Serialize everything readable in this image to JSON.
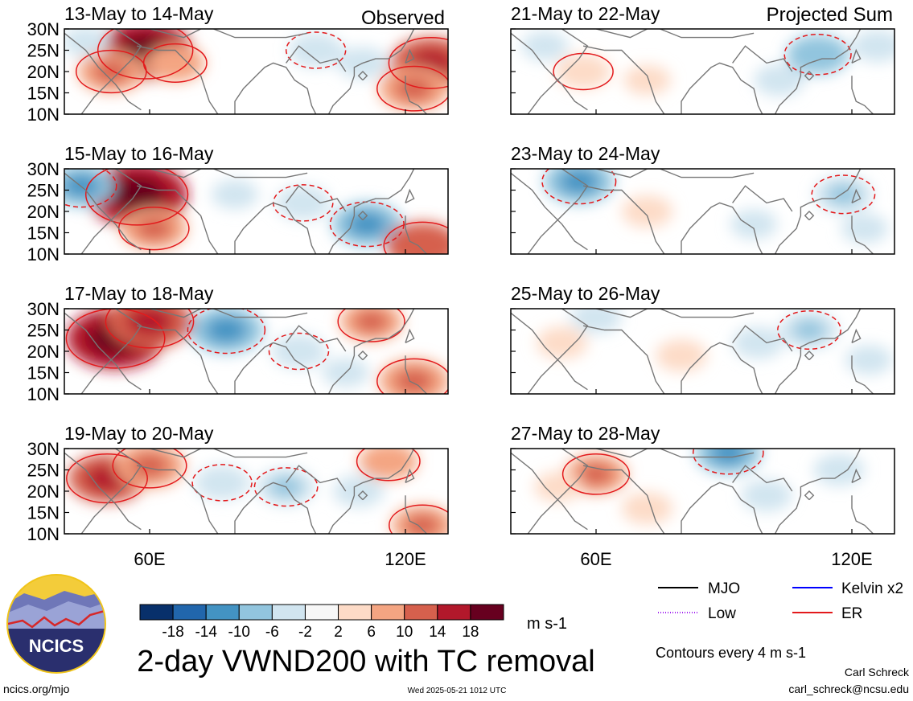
{
  "colors": {
    "palette": [
      "#08306b",
      "#2166ac",
      "#4393c3",
      "#92c5de",
      "#d1e5f0",
      "#f7f7f7",
      "#fddbc7",
      "#f4a582",
      "#d6604d",
      "#b2182b",
      "#67001f"
    ],
    "contour_er": "#e31a1c",
    "contour_mjo": "#000000",
    "contour_kelvin": "#0000ff",
    "contour_low": "#a020f0",
    "coastline": "#777777"
  },
  "header": {
    "observed_label": "Observed",
    "projected_label": "Projected Sum"
  },
  "panels": [
    {
      "title": "13-May to 14-May",
      "column": "observed"
    },
    {
      "title": "15-May to 16-May",
      "column": "observed"
    },
    {
      "title": "17-May to 18-May",
      "column": "observed"
    },
    {
      "title": "19-May to 20-May",
      "column": "observed"
    },
    {
      "title": "21-May to 22-May",
      "column": "projected"
    },
    {
      "title": "23-May to 24-May",
      "column": "projected"
    },
    {
      "title": "25-May to 26-May",
      "column": "projected"
    },
    {
      "title": "27-May to 28-May",
      "column": "projected"
    }
  ],
  "chart_data": {
    "type": "heatmap",
    "title": "2-day VWND200 with TC removal",
    "yticks": [
      "30N",
      "25N",
      "20N",
      "15N",
      "10N"
    ],
    "xticks": [
      "60E",
      "120E"
    ],
    "ylim": [
      10,
      30
    ],
    "xlim": [
      40,
      130
    ],
    "colorbar": {
      "levels": [
        -18,
        -14,
        -10,
        -6,
        -2,
        2,
        6,
        10,
        14,
        18
      ],
      "labels": [
        "-18",
        "-14",
        "-10",
        "-6",
        "-2",
        "2",
        "6",
        "10",
        "14",
        "18"
      ],
      "units": "m s-1"
    },
    "legend": [
      {
        "label": "MJO",
        "color": "#000000"
      },
      {
        "label": "Kelvin x2",
        "color": "#0000ff"
      },
      {
        "label": "Low",
        "color": "#a020f0"
      },
      {
        "label": "ER",
        "color": "#e31a1c"
      }
    ],
    "contour_note": "Contours every 4 m s-1",
    "panels": [
      {
        "title": "13-May to 14-May",
        "anomalies": [
          {
            "lon": 59,
            "lat": 25,
            "value": 15
          },
          {
            "lon": 51,
            "lat": 20,
            "value": 8
          },
          {
            "lon": 66,
            "lat": 22,
            "value": 6
          },
          {
            "lon": 126,
            "lat": 22,
            "value": 12
          },
          {
            "lon": 122,
            "lat": 16,
            "value": 9
          },
          {
            "lon": 99,
            "lat": 25,
            "value": -5
          },
          {
            "lon": 110,
            "lat": 22,
            "value": -4
          },
          {
            "lon": 45,
            "lat": 27,
            "value": -3
          }
        ]
      },
      {
        "title": "15-May to 16-May",
        "anomalies": [
          {
            "lon": 57,
            "lat": 24,
            "value": 17
          },
          {
            "lon": 61,
            "lat": 16,
            "value": 8
          },
          {
            "lon": 44,
            "lat": 26,
            "value": -8
          },
          {
            "lon": 111,
            "lat": 17,
            "value": -9
          },
          {
            "lon": 96,
            "lat": 22,
            "value": -5
          },
          {
            "lon": 124,
            "lat": 12,
            "value": 10
          },
          {
            "lon": 80,
            "lat": 24,
            "value": -3
          }
        ]
      },
      {
        "title": "17-May to 18-May",
        "anomalies": [
          {
            "lon": 52,
            "lat": 23,
            "value": 16
          },
          {
            "lon": 60,
            "lat": 27,
            "value": 13
          },
          {
            "lon": 78,
            "lat": 25,
            "value": -10
          },
          {
            "lon": 95,
            "lat": 20,
            "value": -5
          },
          {
            "lon": 112,
            "lat": 27,
            "value": 7
          },
          {
            "lon": 122,
            "lat": 13,
            "value": 9
          },
          {
            "lon": 106,
            "lat": 15,
            "value": -3
          }
        ]
      },
      {
        "title": "19-May to 20-May",
        "anomalies": [
          {
            "lon": 50,
            "lat": 23,
            "value": 11
          },
          {
            "lon": 60,
            "lat": 26,
            "value": 9
          },
          {
            "lon": 77,
            "lat": 22,
            "value": -5
          },
          {
            "lon": 92,
            "lat": 21,
            "value": -6
          },
          {
            "lon": 109,
            "lat": 20,
            "value": -4
          },
          {
            "lon": 116,
            "lat": 27,
            "value": 6
          },
          {
            "lon": 124,
            "lat": 12,
            "value": 7
          }
        ]
      },
      {
        "title": "21-May to 22-May",
        "anomalies": [
          {
            "lon": 57,
            "lat": 20,
            "value": 5
          },
          {
            "lon": 72,
            "lat": 18,
            "value": 3
          },
          {
            "lon": 48,
            "lat": 26,
            "value": -3
          },
          {
            "lon": 112,
            "lat": 24,
            "value": -7
          },
          {
            "lon": 103,
            "lat": 18,
            "value": -4
          },
          {
            "lon": 126,
            "lat": 26,
            "value": -4
          }
        ]
      },
      {
        "title": "23-May to 24-May",
        "anomalies": [
          {
            "lon": 56,
            "lat": 27,
            "value": -9
          },
          {
            "lon": 72,
            "lat": 20,
            "value": 4
          },
          {
            "lon": 97,
            "lat": 17,
            "value": -3
          },
          {
            "lon": 118,
            "lat": 24,
            "value": -6
          },
          {
            "lon": 123,
            "lat": 16,
            "value": -3
          }
        ]
      },
      {
        "title": "25-May to 26-May",
        "anomalies": [
          {
            "lon": 52,
            "lat": 22,
            "value": 4
          },
          {
            "lon": 60,
            "lat": 28,
            "value": -4
          },
          {
            "lon": 80,
            "lat": 19,
            "value": 4
          },
          {
            "lon": 98,
            "lat": 22,
            "value": -4
          },
          {
            "lon": 110,
            "lat": 25,
            "value": -6
          },
          {
            "lon": 124,
            "lat": 18,
            "value": -3
          }
        ]
      },
      {
        "title": "27-May to 28-May",
        "anomalies": [
          {
            "lon": 60,
            "lat": 24,
            "value": 7
          },
          {
            "lon": 72,
            "lat": 16,
            "value": 4
          },
          {
            "lon": 51,
            "lat": 21,
            "value": 3
          },
          {
            "lon": 91,
            "lat": 29,
            "value": -8
          },
          {
            "lon": 100,
            "lat": 19,
            "value": -4
          },
          {
            "lon": 117,
            "lat": 25,
            "value": -4
          }
        ]
      }
    ]
  },
  "logo": {
    "text": "NCICS"
  },
  "footer": {
    "url": "ncics.org/mjo",
    "timestamp": "Wed 2025-05-21 1012 UTC",
    "author": "Carl Schreck",
    "email": "carl_schreck@ncsu.edu"
  }
}
